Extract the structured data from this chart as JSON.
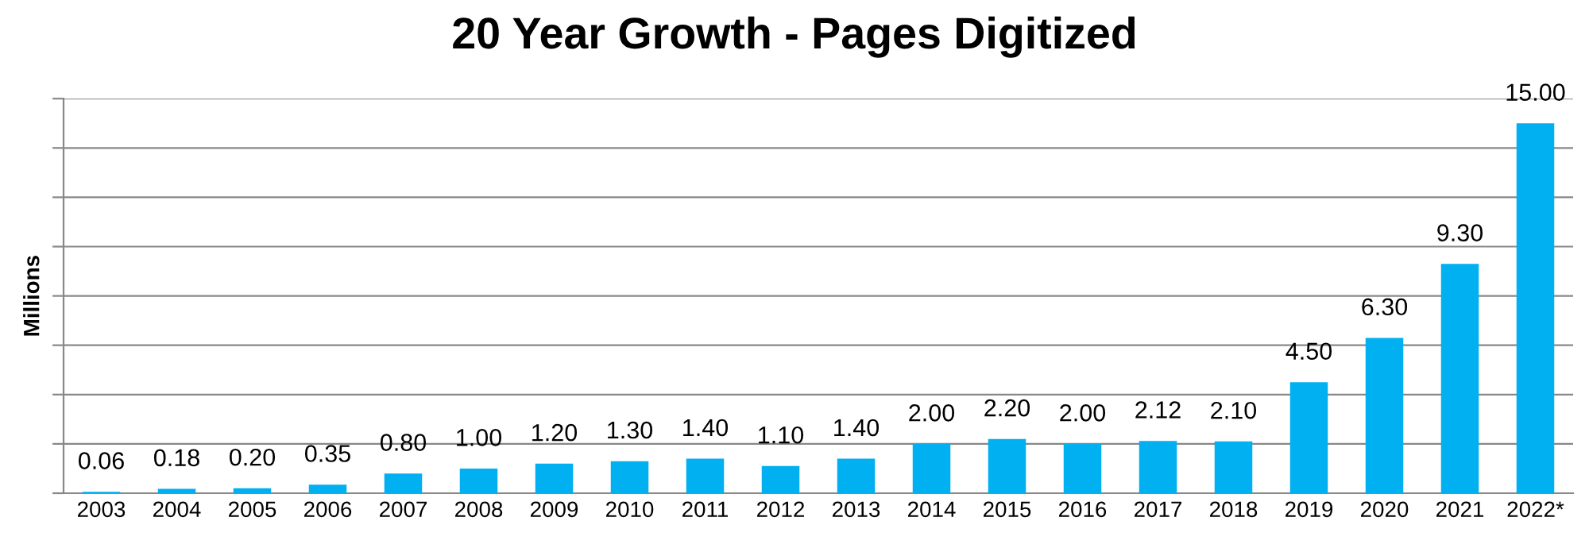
{
  "chart_data": {
    "type": "bar",
    "title": "20 Year Growth - Pages Digitized",
    "ylabel": "Millions",
    "categories": [
      "2003",
      "2004",
      "2005",
      "2006",
      "2007",
      "2008",
      "2009",
      "2010",
      "2011",
      "2012",
      "2013",
      "2014",
      "2015",
      "2016",
      "2017",
      "2018",
      "2019",
      "2020",
      "2021",
      "2022*"
    ],
    "values": [
      0.06,
      0.18,
      0.2,
      0.35,
      0.8,
      1.0,
      1.2,
      1.3,
      1.4,
      1.1,
      1.4,
      2.0,
      2.2,
      2.0,
      2.12,
      2.1,
      4.5,
      6.3,
      9.3,
      15.0
    ],
    "value_labels": [
      "0.06",
      "0.18",
      "0.20",
      "0.35",
      "0.80",
      "1.00",
      "1.20",
      "1.30",
      "1.40",
      "1.10",
      "1.40",
      "2.00",
      "2.20",
      "2.00",
      "2.12",
      "2.10",
      "4.50",
      "6.30",
      "9.30",
      "15.00"
    ],
    "color": "#00b0f0",
    "ylim": [
      0,
      16
    ],
    "yticks": [
      {
        "value": 0,
        "label": null
      },
      {
        "value": 2,
        "label": null
      },
      {
        "value": 4,
        "label": null
      },
      {
        "value": 6,
        "label": null
      },
      {
        "value": 8,
        "label": null
      },
      {
        "value": 10,
        "label": null
      },
      {
        "value": 12,
        "label": null
      },
      {
        "value": 14,
        "label": null
      },
      {
        "value": 16,
        "label": null
      }
    ],
    "grid": "y",
    "tick_labels": "x"
  }
}
